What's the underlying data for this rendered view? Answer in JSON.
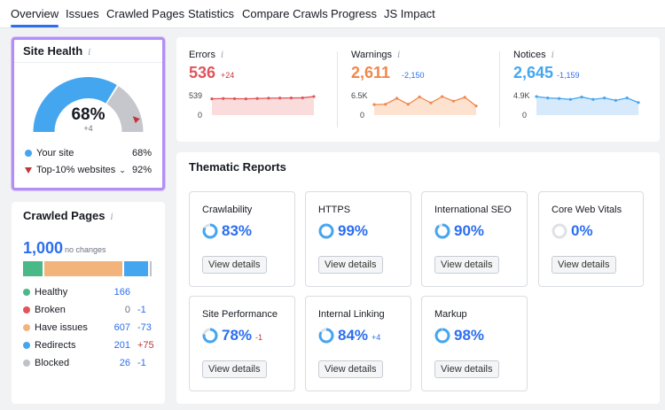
{
  "tabs": [
    {
      "label": "Overview",
      "active": true
    },
    {
      "label": "Issues"
    },
    {
      "label": "Crawled Pages"
    },
    {
      "label": "Statistics"
    },
    {
      "label": "Compare Crawls"
    },
    {
      "label": "Progress"
    },
    {
      "label": "JS Impact"
    }
  ],
  "site_health": {
    "title": "Site Health",
    "info": "i",
    "percent": "68%",
    "percent_value": 68,
    "top10_value": 92,
    "delta": "+4",
    "your_site_label": "Your site",
    "your_site_value": "68%",
    "top10_label": "Top-10% websites",
    "top10_pct": "92%",
    "colors": {
      "site": "#45a6f0",
      "rest": "#c5c7cc",
      "marker": "#c0363b"
    }
  },
  "crawled_pages": {
    "title": "Crawled Pages",
    "info": "i",
    "count": "1,000",
    "change": "no changes",
    "rows": [
      {
        "label": "Healthy",
        "value": "166",
        "change": "",
        "color": "#4bb887",
        "share": 166
      },
      {
        "label": "Broken",
        "value": "0",
        "change": "-1",
        "color": "#e0555a",
        "share": 0
      },
      {
        "label": "Have issues",
        "value": "607",
        "change": "-73",
        "color": "#f3b47b",
        "share": 607
      },
      {
        "label": "Redirects",
        "value": "201",
        "change": "+75",
        "color": "#45a6f0",
        "share": 201
      },
      {
        "label": "Blocked",
        "value": "26",
        "change": "-1",
        "color": "#bfc2c8",
        "share": 26
      }
    ]
  },
  "metrics": [
    {
      "label": "Errors",
      "info": "i",
      "value": "536",
      "delta": "+24",
      "color": "#e0555a",
      "fill": "#fbdcdc",
      "y_top": "539",
      "y_bottom": "0",
      "points": [
        470,
        480,
        475,
        470,
        480,
        490,
        492,
        495,
        500,
        536
      ]
    },
    {
      "label": "Warnings",
      "info": "i",
      "value": "2,611",
      "delta": "-2,150",
      "color": "#f0884d",
      "fill": "#fde3cf",
      "y_top": "6.5K",
      "y_bottom": "0",
      "points": [
        3000,
        3100,
        4800,
        3100,
        5200,
        3500,
        5300,
        4000,
        5100,
        2611
      ]
    },
    {
      "label": "Notices",
      "info": "i",
      "value": "2,645",
      "delta": "-1,159",
      "color": "#45a6f0",
      "fill": "#d6eafb",
      "y_top": "4.9K",
      "y_bottom": "0",
      "points": [
        3900,
        3600,
        3500,
        3300,
        3800,
        3300,
        3600,
        3100,
        3600,
        2645
      ]
    }
  ],
  "thematic": {
    "title": "Thematic Reports",
    "button_label": "View details",
    "cards": [
      {
        "label": "Crawlability",
        "value": "83%",
        "pct": 83,
        "delta": ""
      },
      {
        "label": "HTTPS",
        "value": "99%",
        "pct": 99,
        "delta": ""
      },
      {
        "label": "International SEO",
        "value": "90%",
        "pct": 90,
        "delta": ""
      },
      {
        "label": "Core Web Vitals",
        "value": "0%",
        "pct": 0,
        "delta": ""
      },
      {
        "label": "Site Performance",
        "value": "78%",
        "pct": 78,
        "delta": "-1"
      },
      {
        "label": "Internal Linking",
        "value": "84%",
        "pct": 84,
        "delta": "+4"
      },
      {
        "label": "Markup",
        "value": "98%",
        "pct": 98,
        "delta": ""
      }
    ]
  }
}
